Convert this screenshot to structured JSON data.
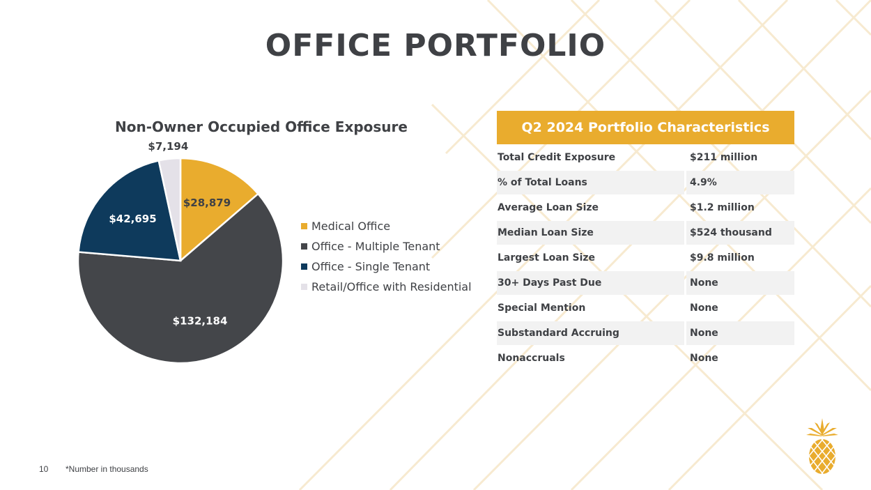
{
  "page": {
    "title": "OFFICE PORTFOLIO",
    "page_number": "10",
    "footnote": "*Number in thousands"
  },
  "colors": {
    "gold": "#e9ac2e",
    "dark_gray": "#3f4145",
    "navy": "#0e3a5c",
    "light_gray": "#e4e1e8"
  },
  "chart_data": {
    "type": "pie",
    "title": "Non-Owner Occupied Office Exposure",
    "unit": "thousands",
    "slices": [
      {
        "name": "Medical Office",
        "value": 28879,
        "label": "$28,879",
        "color": "#e9ac2e"
      },
      {
        "name": "Office - Multiple Tenant",
        "value": 132184,
        "label": "$132,184",
        "color": "#44464a"
      },
      {
        "name": "Office - Single Tenant",
        "value": 42695,
        "label": "$42,695",
        "color": "#0e3a5c"
      },
      {
        "name": "Retail/Office with Residential",
        "value": 7194,
        "label": "$7,194",
        "color": "#e4e1e8"
      }
    ]
  },
  "panel": {
    "header": "Q2 2024 Portfolio Characteristics",
    "rows": [
      {
        "label": "Total Credit Exposure",
        "value": "$211 million"
      },
      {
        "label": "% of Total Loans",
        "value": "4.9%"
      },
      {
        "label": "Average Loan Size",
        "value": "$1.2 million"
      },
      {
        "label": "Median Loan Size",
        "value": "$524 thousand"
      },
      {
        "label": "Largest Loan Size",
        "value": "$9.8 million"
      },
      {
        "label": "30+ Days Past Due",
        "value": "None"
      },
      {
        "label": "Special Mention",
        "value": "None"
      },
      {
        "label": "Substandard Accruing",
        "value": "None"
      },
      {
        "label": "Nonaccruals",
        "value": "None"
      }
    ]
  },
  "logo": {
    "icon": "pineapple-icon"
  }
}
